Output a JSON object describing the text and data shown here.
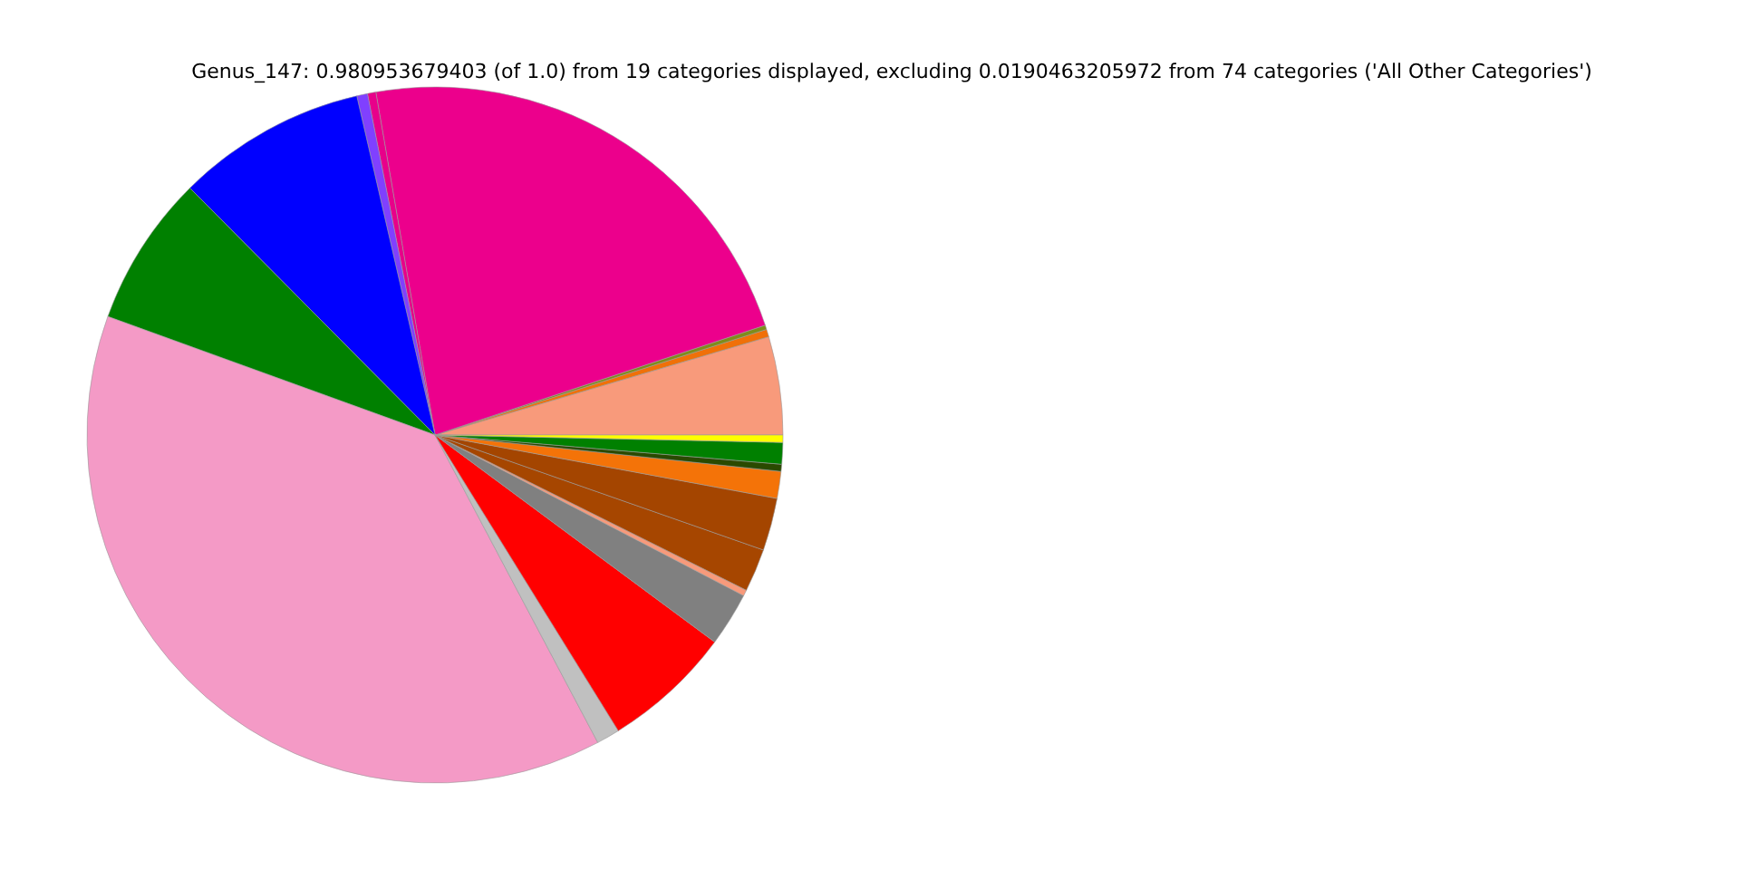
{
  "chart_data": {
    "type": "pie",
    "title": "Genus_147: 0.980953679403 (of 1.0) from 19 categories displayed, excluding 0.0190463205972 from 74 categories ('All Other Categories')",
    "categories": [
      null,
      null,
      null,
      null,
      null,
      null,
      null,
      null,
      null,
      null,
      null,
      null,
      null,
      null,
      null,
      null,
      null,
      null,
      null
    ],
    "values": [
      4.56,
      0.35,
      0.2,
      22.61,
      0.39,
      0.5,
      8.83,
      7.03,
      38.28,
      1.08,
      6.03,
      2.5,
      0.28,
      2.0,
      2.44,
      1.25,
      0.33,
      1.0,
      0.34
    ],
    "colors": [
      "#f89a7b",
      "#f07008",
      "#7f8c1a",
      "#ec008c",
      "#e8008a",
      "#8040ff",
      "#0000ff",
      "#008000",
      "#f49ac6",
      "#c0c0c0",
      "#ff0000",
      "#808080",
      "#f89a7b",
      "#a64600",
      "#a44500",
      "#f47308",
      "#2a4a00",
      "#008000",
      "#ffff00"
    ]
  }
}
